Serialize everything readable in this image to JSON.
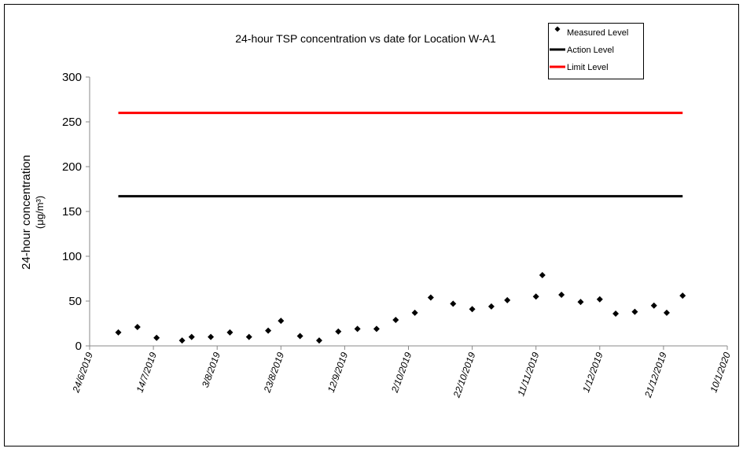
{
  "chart_data": {
    "type": "scatter",
    "title": "24-hour TSP concentration vs date for Location W-A1",
    "y_label": [
      "24-hour concentration",
      "(μg/m³)"
    ],
    "xlim": [
      "2019-06-24",
      "2020-01-10"
    ],
    "xticks": [
      {
        "value": "2019-06-24",
        "label": "24/6/2019"
      },
      {
        "value": "2019-07-14",
        "label": "14/7/2019"
      },
      {
        "value": "2019-08-03",
        "label": "3/8/2019"
      },
      {
        "value": "2019-08-23",
        "label": "23/8/2019"
      },
      {
        "value": "2019-09-12",
        "label": "12/9/2019"
      },
      {
        "value": "2019-10-02",
        "label": "2/10/2019"
      },
      {
        "value": "2019-10-22",
        "label": "22/10/2019"
      },
      {
        "value": "2019-11-11",
        "label": "11/11/2019"
      },
      {
        "value": "2019-12-01",
        "label": "1/12/2019"
      },
      {
        "value": "2019-12-21",
        "label": "21/12/2019"
      },
      {
        "value": "2020-01-10",
        "label": "10/1/2020"
      }
    ],
    "ylim": [
      0,
      300
    ],
    "yticks": [
      0,
      50,
      100,
      150,
      200,
      250,
      300
    ],
    "legend": "top-right",
    "series": [
      {
        "name": "Measured Level",
        "color": "#000000",
        "style": "marker",
        "x": [
          "2019-07-03",
          "2019-07-09",
          "2019-07-15",
          "2019-07-23",
          "2019-07-26",
          "2019-08-01",
          "2019-08-07",
          "2019-08-13",
          "2019-08-19",
          "2019-08-23",
          "2019-08-29",
          "2019-09-04",
          "2019-09-10",
          "2019-09-16",
          "2019-09-22",
          "2019-09-28",
          "2019-10-04",
          "2019-10-09",
          "2019-10-16",
          "2019-10-22",
          "2019-10-28",
          "2019-11-02",
          "2019-11-11",
          "2019-11-13",
          "2019-11-19",
          "2019-11-25",
          "2019-12-01",
          "2019-12-06",
          "2019-12-12",
          "2019-12-18",
          "2019-12-22",
          "2019-12-27"
        ],
        "values": [
          15,
          21,
          9,
          6,
          10,
          10,
          15,
          10,
          17,
          28,
          11,
          6,
          16,
          19,
          19,
          29,
          37,
          54,
          47,
          41,
          44,
          51,
          55,
          79,
          57,
          49,
          52,
          36,
          38,
          45,
          37,
          56
        ]
      },
      {
        "name": "Action Level",
        "color": "#000000",
        "style": "line",
        "x": [
          "2019-07-03",
          "2019-12-27"
        ],
        "values": [
          167,
          167
        ]
      },
      {
        "name": "Limit Level",
        "color": "#ff0000",
        "style": "line",
        "x": [
          "2019-07-03",
          "2019-12-27"
        ],
        "values": [
          260,
          260
        ]
      }
    ]
  }
}
